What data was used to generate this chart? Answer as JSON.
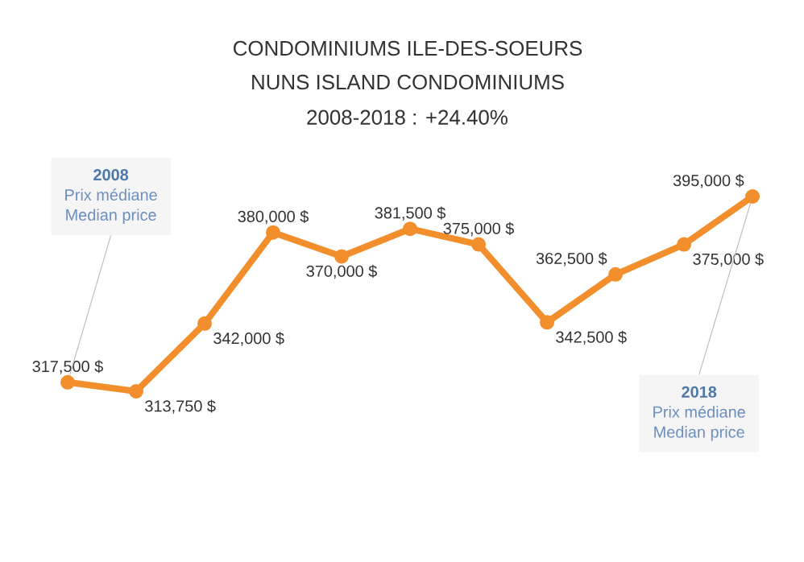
{
  "chart_data": {
    "type": "line",
    "title": "CONDOMINIUMS ILE-DES-SOEURS",
    "subtitle": "NUNS ISLAND CONDOMINIUMS",
    "categories": [
      null,
      null,
      null,
      null,
      null,
      null,
      null,
      null,
      null,
      null,
      null
    ],
    "series": [
      {
        "color": "#f28e2b",
        "values": [
          317500,
          313750,
          342000,
          380000,
          370000,
          381500,
          375000,
          342500,
          362500,
          375000,
          395000
        ],
        "value_labels": [
          "317,500 $",
          "313,750 $",
          "342,000 $",
          "380,000 $",
          "370,000 $",
          "381,500 $",
          "375,000 $",
          "342,500 $",
          "362,500 $",
          "375,000 $",
          "395,000 $"
        ]
      }
    ],
    "annotations": [
      "2008-2018 : +24.40%",
      "2008",
      "Prix médiane",
      "Median price",
      "2018",
      "Prix médiane",
      "Median price"
    ],
    "marker": "circle",
    "line_style": "solid"
  }
}
